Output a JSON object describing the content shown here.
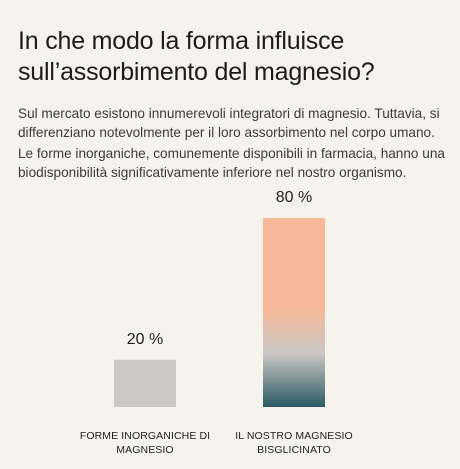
{
  "header": {
    "title": "In che modo la forma influisce sull’assorbimento del magnesio?",
    "paragraph_1": "Sul mercato esistono innumerevoli integratori di magnesio. Tuttavia, si differenziano notevolmente per il loro assorbimento nel corpo umano.",
    "paragraph_2": "Le forme inorganiche, comunemente disponibili in farmacia, hanno una biodisponibilità significativamente inferiore nel nostro organismo."
  },
  "chart_data": {
    "type": "bar",
    "categories": [
      "FORME INORGANICHE DI MAGNESIO",
      "IL NOSTRO MAGNESIO BISGLICINATO"
    ],
    "values": [
      20,
      80
    ],
    "value_labels": [
      "20 %",
      "80 %"
    ],
    "ylim": [
      0,
      80
    ],
    "grid": false,
    "legend": "none",
    "colors": {
      "bar_0": "#cbc9c3",
      "bar_1_top": "#f6b898",
      "bar_1_mid": "#c9c6c4",
      "bar_1_bottom": "#2a5a63"
    }
  }
}
